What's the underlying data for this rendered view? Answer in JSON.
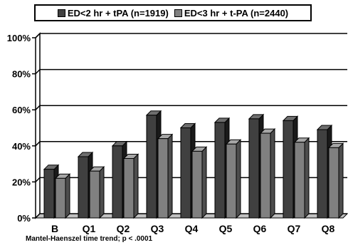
{
  "colors": {
    "series1": "#404040",
    "series1_side": "#1a1a1a",
    "series1_top": "#6e6e6e",
    "series2": "#808080",
    "series2_side": "#4d4d4d",
    "series2_top": "#a6a6a6",
    "floor": "#c0c0c0",
    "grid": "#000000"
  },
  "chart_data": {
    "type": "bar",
    "title": "",
    "xlabel": "",
    "ylabel": "",
    "ylim": [
      0,
      100
    ],
    "yticks": [
      0,
      20,
      40,
      60,
      80,
      100
    ],
    "ytick_labels": [
      "0%",
      "20%",
      "40%",
      "60%",
      "80%",
      "100%"
    ],
    "grid": true,
    "legend_position": "top",
    "categories": [
      "B",
      "Q1",
      "Q2",
      "Q3",
      "Q4",
      "Q5",
      "Q6",
      "Q7",
      "Q8"
    ],
    "series": [
      {
        "name": "ED<2 hr + tPA (n=1919)",
        "values": [
          27,
          34,
          40,
          57,
          50,
          53,
          55,
          54,
          49
        ]
      },
      {
        "name": "ED<3 hr + t-PA (n=2440)",
        "values": [
          22,
          26,
          33,
          44,
          37,
          41,
          47,
          42,
          39
        ]
      }
    ],
    "annotation": "Mantel-Haenszel time trend; p < .0001"
  }
}
